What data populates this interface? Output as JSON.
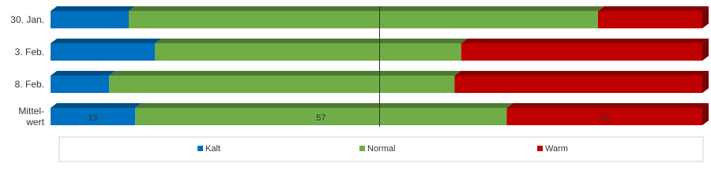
{
  "chart_data": {
    "type": "stacked-bar-3d",
    "categories": [
      "30. Jan.",
      "3. Feb.",
      "8. Feb.",
      "Mittel-\nwert"
    ],
    "series": [
      {
        "name": "Kalt",
        "color": "#0070c0",
        "values": [
          12,
          16,
          9,
          13
        ]
      },
      {
        "name": "Normal",
        "color": "#70ad47",
        "values": [
          72,
          47,
          53,
          57
        ]
      },
      {
        "name": "Warm",
        "color": "#c00000",
        "values": [
          16,
          37,
          38,
          30
        ]
      }
    ],
    "xlim": [
      0,
      100
    ],
    "reference_line": 50,
    "data_label_category": 3,
    "legend": "bottom"
  }
}
